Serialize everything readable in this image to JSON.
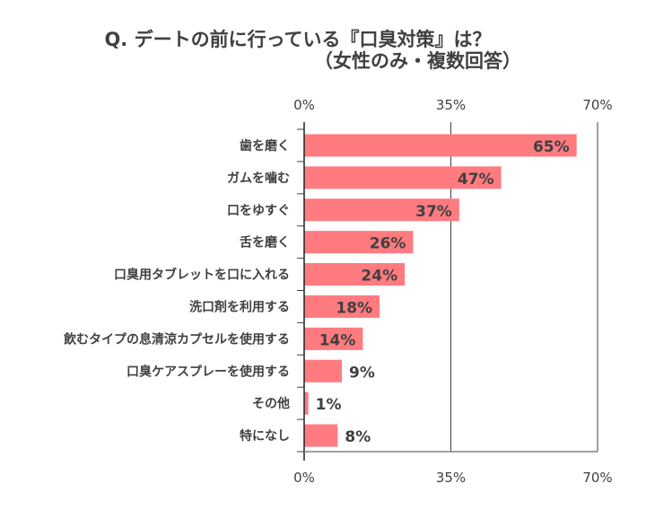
{
  "chart_data": {
    "type": "bar",
    "orientation": "horizontal",
    "title": "Q. デートの前に行っている『口臭対策』は？",
    "subtitle": "（女性のみ・複数回答）",
    "categories": [
      "歯を磨く",
      "ガムを噛む",
      "口をゆすぐ",
      "舌を磨く",
      "口臭用タブレットを口に入れる",
      "洗口剤を利用する",
      "飲むタイプの息清涼カプセルを使用する",
      "口臭ケアスプレーを使用する",
      "その他",
      "特になし"
    ],
    "values": [
      65,
      47,
      37,
      26,
      24,
      18,
      14,
      9,
      1,
      8
    ],
    "data_labels": [
      "65%",
      "47%",
      "37%",
      "26%",
      "24%",
      "18%",
      "14%",
      "9%",
      "1%",
      "8%"
    ],
    "xlim": [
      0,
      70
    ],
    "tick_labels": [
      "0%",
      "35%",
      "70%"
    ],
    "tick_values": [
      0,
      35,
      70
    ],
    "grid": true,
    "legend": "none",
    "bar_color": "#FF7B80"
  }
}
